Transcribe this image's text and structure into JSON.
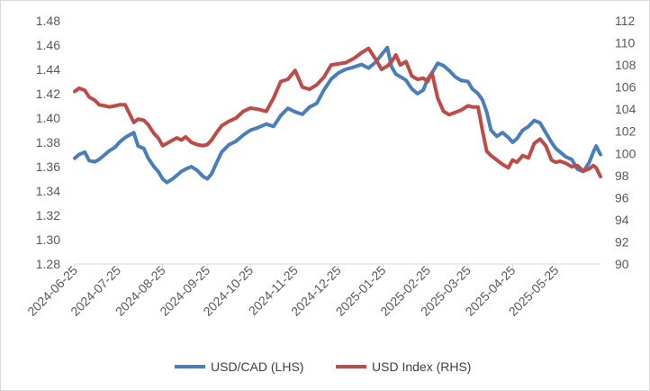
{
  "chart_data": {
    "type": "line",
    "title": "",
    "xlabel": "",
    "ylabel_left": "",
    "ylabel_right": "",
    "x_tick_labels": [
      "2024-06-25",
      "2024-07-25",
      "2024-08-25",
      "2024-09-25",
      "2024-10-25",
      "2024-11-25",
      "2024-12-25",
      "2025-01-25",
      "2025-02-25",
      "2025-03-25",
      "2025-04-25",
      "2025-05-25"
    ],
    "y_left": {
      "min": 1.28,
      "max": 1.48,
      "step": 0.02,
      "ticks": [
        "1.28",
        "1.30",
        "1.32",
        "1.34",
        "1.36",
        "1.38",
        "1.40",
        "1.42",
        "1.44",
        "1.46",
        "1.48"
      ]
    },
    "y_right": {
      "min": 90,
      "max": 112,
      "step": 2,
      "ticks": [
        "90",
        "92",
        "94",
        "96",
        "98",
        "100",
        "102",
        "104",
        "106",
        "108",
        "110",
        "112"
      ]
    },
    "grid": false,
    "legend_position": "bottom",
    "series": [
      {
        "name": "USD/CAD (LHS)",
        "axis": "left",
        "color": "#4a7ebb",
        "points": [
          [
            "2024-06-25",
            1.367
          ],
          [
            "2024-06-28",
            1.37
          ],
          [
            "2024-07-02",
            1.372
          ],
          [
            "2024-07-05",
            1.365
          ],
          [
            "2024-07-09",
            1.364
          ],
          [
            "2024-07-12",
            1.366
          ],
          [
            "2024-07-16",
            1.37
          ],
          [
            "2024-07-19",
            1.373
          ],
          [
            "2024-07-23",
            1.376
          ],
          [
            "2024-07-26",
            1.38
          ],
          [
            "2024-07-30",
            1.384
          ],
          [
            "2024-08-02",
            1.386
          ],
          [
            "2024-08-05",
            1.388
          ],
          [
            "2024-08-08",
            1.377
          ],
          [
            "2024-08-12",
            1.375
          ],
          [
            "2024-08-15",
            1.367
          ],
          [
            "2024-08-19",
            1.36
          ],
          [
            "2024-08-22",
            1.356
          ],
          [
            "2024-08-25",
            1.35
          ],
          [
            "2024-08-28",
            1.347
          ],
          [
            "2024-09-01",
            1.35
          ],
          [
            "2024-09-04",
            1.353
          ],
          [
            "2024-09-07",
            1.356
          ],
          [
            "2024-09-10",
            1.358
          ],
          [
            "2024-09-14",
            1.36
          ],
          [
            "2024-09-18",
            1.357
          ],
          [
            "2024-09-22",
            1.352
          ],
          [
            "2024-09-25",
            1.35
          ],
          [
            "2024-09-28",
            1.354
          ],
          [
            "2024-10-01",
            1.362
          ],
          [
            "2024-10-05",
            1.372
          ],
          [
            "2024-10-10",
            1.378
          ],
          [
            "2024-10-15",
            1.381
          ],
          [
            "2024-10-20",
            1.386
          ],
          [
            "2024-10-25",
            1.39
          ],
          [
            "2024-10-30",
            1.392
          ],
          [
            "2024-11-05",
            1.395
          ],
          [
            "2024-11-10",
            1.393
          ],
          [
            "2024-11-15",
            1.402
          ],
          [
            "2024-11-20",
            1.408
          ],
          [
            "2024-11-25",
            1.405
          ],
          [
            "2024-11-30",
            1.403
          ],
          [
            "2024-12-05",
            1.409
          ],
          [
            "2024-12-10",
            1.412
          ],
          [
            "2024-12-15",
            1.423
          ],
          [
            "2024-12-20",
            1.432
          ],
          [
            "2024-12-25",
            1.437
          ],
          [
            "2024-12-30",
            1.44
          ],
          [
            "2025-01-05",
            1.442
          ],
          [
            "2025-01-10",
            1.444
          ],
          [
            "2025-01-15",
            1.441
          ],
          [
            "2025-01-20",
            1.446
          ],
          [
            "2025-01-24",
            1.452
          ],
          [
            "2025-01-28",
            1.458
          ],
          [
            "2025-01-31",
            1.442
          ],
          [
            "2025-02-03",
            1.436
          ],
          [
            "2025-02-06",
            1.434
          ],
          [
            "2025-02-10",
            1.431
          ],
          [
            "2025-02-14",
            1.424
          ],
          [
            "2025-02-18",
            1.42
          ],
          [
            "2025-02-22",
            1.423
          ],
          [
            "2025-02-25",
            1.432
          ],
          [
            "2025-02-28",
            1.437
          ],
          [
            "2025-03-04",
            1.445
          ],
          [
            "2025-03-08",
            1.443
          ],
          [
            "2025-03-12",
            1.439
          ],
          [
            "2025-03-16",
            1.434
          ],
          [
            "2025-03-20",
            1.431
          ],
          [
            "2025-03-25",
            1.43
          ],
          [
            "2025-03-28",
            1.424
          ],
          [
            "2025-04-01",
            1.42
          ],
          [
            "2025-04-04",
            1.415
          ],
          [
            "2025-04-07",
            1.405
          ],
          [
            "2025-04-10",
            1.39
          ],
          [
            "2025-04-14",
            1.385
          ],
          [
            "2025-04-18",
            1.388
          ],
          [
            "2025-04-22",
            1.384
          ],
          [
            "2025-04-25",
            1.38
          ],
          [
            "2025-04-28",
            1.383
          ],
          [
            "2025-05-02",
            1.39
          ],
          [
            "2025-05-06",
            1.393
          ],
          [
            "2025-05-10",
            1.398
          ],
          [
            "2025-05-14",
            1.396
          ],
          [
            "2025-05-18",
            1.388
          ],
          [
            "2025-05-22",
            1.38
          ],
          [
            "2025-05-25",
            1.375
          ],
          [
            "2025-05-28",
            1.372
          ],
          [
            "2025-06-01",
            1.368
          ],
          [
            "2025-06-05",
            1.366
          ],
          [
            "2025-06-09",
            1.358
          ],
          [
            "2025-06-13",
            1.356
          ],
          [
            "2025-06-17",
            1.363
          ],
          [
            "2025-06-20",
            1.372
          ],
          [
            "2025-06-22",
            1.377
          ],
          [
            "2025-06-25",
            1.37
          ]
        ]
      },
      {
        "name": "USD Index (RHS)",
        "axis": "right",
        "color": "#be4b48",
        "points": [
          [
            "2024-06-25",
            105.6
          ],
          [
            "2024-06-28",
            105.9
          ],
          [
            "2024-07-02",
            105.7
          ],
          [
            "2024-07-05",
            105.1
          ],
          [
            "2024-07-09",
            104.8
          ],
          [
            "2024-07-12",
            104.4
          ],
          [
            "2024-07-16",
            104.3
          ],
          [
            "2024-07-19",
            104.2
          ],
          [
            "2024-07-23",
            104.3
          ],
          [
            "2024-07-26",
            104.4
          ],
          [
            "2024-07-30",
            104.4
          ],
          [
            "2024-08-02",
            103.6
          ],
          [
            "2024-08-05",
            102.8
          ],
          [
            "2024-08-08",
            103.1
          ],
          [
            "2024-08-12",
            103.0
          ],
          [
            "2024-08-15",
            102.6
          ],
          [
            "2024-08-19",
            101.8
          ],
          [
            "2024-08-22",
            101.4
          ],
          [
            "2024-08-25",
            100.7
          ],
          [
            "2024-08-28",
            100.9
          ],
          [
            "2024-09-01",
            101.2
          ],
          [
            "2024-09-04",
            101.4
          ],
          [
            "2024-09-07",
            101.2
          ],
          [
            "2024-09-10",
            101.5
          ],
          [
            "2024-09-14",
            101.0
          ],
          [
            "2024-09-18",
            100.8
          ],
          [
            "2024-09-22",
            100.7
          ],
          [
            "2024-09-25",
            100.8
          ],
          [
            "2024-09-28",
            101.2
          ],
          [
            "2024-10-01",
            101.8
          ],
          [
            "2024-10-05",
            102.5
          ],
          [
            "2024-10-10",
            102.9
          ],
          [
            "2024-10-15",
            103.2
          ],
          [
            "2024-10-20",
            103.8
          ],
          [
            "2024-10-25",
            104.1
          ],
          [
            "2024-10-30",
            104.0
          ],
          [
            "2024-11-05",
            103.8
          ],
          [
            "2024-11-10",
            105.0
          ],
          [
            "2024-11-15",
            106.5
          ],
          [
            "2024-11-20",
            106.7
          ],
          [
            "2024-11-25",
            107.5
          ],
          [
            "2024-11-30",
            106.0
          ],
          [
            "2024-12-05",
            105.8
          ],
          [
            "2024-12-10",
            106.2
          ],
          [
            "2024-12-15",
            106.9
          ],
          [
            "2024-12-20",
            108.0
          ],
          [
            "2024-12-25",
            108.1
          ],
          [
            "2024-12-30",
            108.2
          ],
          [
            "2025-01-05",
            108.6
          ],
          [
            "2025-01-10",
            109.1
          ],
          [
            "2025-01-15",
            109.5
          ],
          [
            "2025-01-20",
            108.5
          ],
          [
            "2025-01-24",
            107.6
          ],
          [
            "2025-01-28",
            107.9
          ],
          [
            "2025-01-31",
            108.3
          ],
          [
            "2025-02-03",
            108.9
          ],
          [
            "2025-02-06",
            108.0
          ],
          [
            "2025-02-10",
            108.3
          ],
          [
            "2025-02-14",
            107.0
          ],
          [
            "2025-02-18",
            106.7
          ],
          [
            "2025-02-22",
            106.8
          ],
          [
            "2025-02-25",
            106.5
          ],
          [
            "2025-02-28",
            107.3
          ],
          [
            "2025-03-04",
            105.0
          ],
          [
            "2025-03-08",
            103.8
          ],
          [
            "2025-03-12",
            103.5
          ],
          [
            "2025-03-16",
            103.7
          ],
          [
            "2025-03-20",
            103.9
          ],
          [
            "2025-03-25",
            104.3
          ],
          [
            "2025-03-28",
            104.2
          ],
          [
            "2025-04-01",
            104.2
          ],
          [
            "2025-04-04",
            102.1
          ],
          [
            "2025-04-07",
            100.2
          ],
          [
            "2025-04-10",
            99.8
          ],
          [
            "2025-04-14",
            99.4
          ],
          [
            "2025-04-18",
            99.0
          ],
          [
            "2025-04-22",
            98.7
          ],
          [
            "2025-04-25",
            99.4
          ],
          [
            "2025-04-28",
            99.2
          ],
          [
            "2025-05-02",
            99.8
          ],
          [
            "2025-05-06",
            99.6
          ],
          [
            "2025-05-10",
            100.9
          ],
          [
            "2025-05-14",
            101.3
          ],
          [
            "2025-05-18",
            100.7
          ],
          [
            "2025-05-22",
            99.4
          ],
          [
            "2025-05-25",
            99.2
          ],
          [
            "2025-05-28",
            99.3
          ],
          [
            "2025-06-01",
            99.1
          ],
          [
            "2025-06-05",
            98.8
          ],
          [
            "2025-06-09",
            98.9
          ],
          [
            "2025-06-13",
            98.4
          ],
          [
            "2025-06-17",
            98.6
          ],
          [
            "2025-06-20",
            98.9
          ],
          [
            "2025-06-22",
            98.7
          ],
          [
            "2025-06-25",
            97.9
          ]
        ]
      }
    ]
  }
}
